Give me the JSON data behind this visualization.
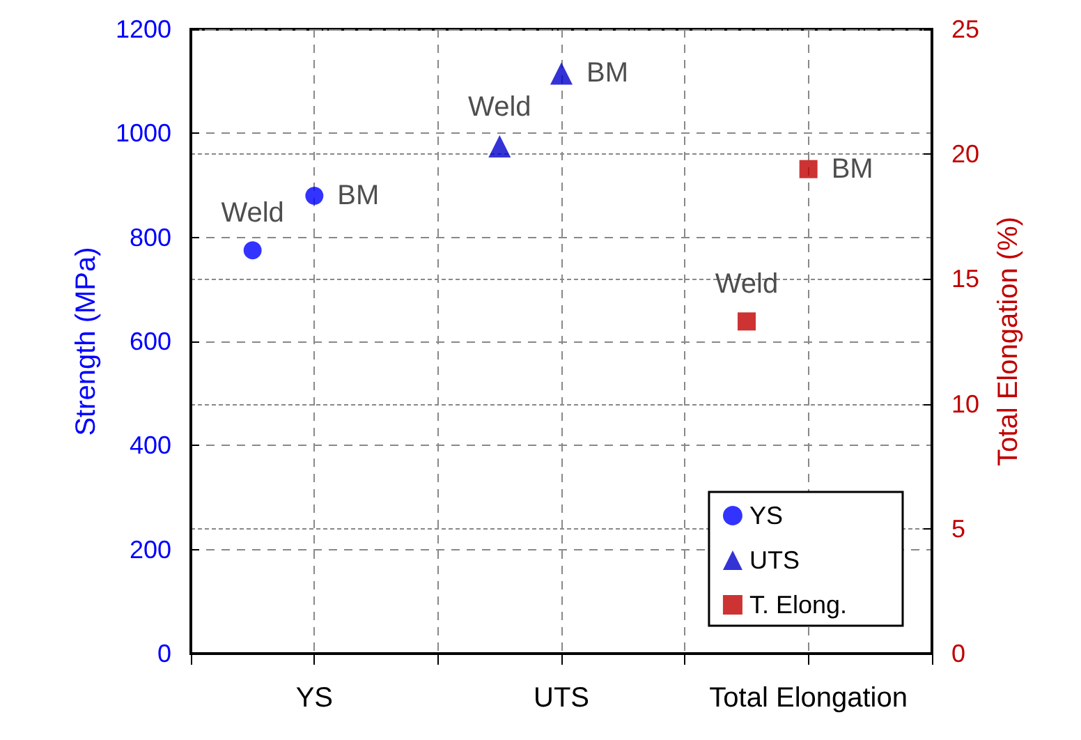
{
  "chart_data": {
    "type": "scatter",
    "categories": [
      "YS",
      "UTS",
      "Total Elongation"
    ],
    "ylabel": "Strength (MPa)",
    "y2label": "Total Elongation (%)",
    "ylim": [
      0,
      1200
    ],
    "yticks": [
      0,
      200,
      400,
      600,
      800,
      1000,
      1200
    ],
    "y2lim": [
      0,
      25
    ],
    "y2ticks": [
      0,
      5,
      10,
      15,
      20,
      25
    ],
    "grid": true,
    "legend": "bottom right",
    "series": [
      {
        "name": "YS",
        "color": "#0000ff",
        "marker": "circle",
        "x": [
          "YS",
          "YS"
        ],
        "values": [
          775,
          880
        ]
      },
      {
        "name": "UTS",
        "color": "#0000cc",
        "marker": "triangle",
        "x": [
          "UTS",
          "UTS"
        ],
        "values": [
          975,
          1115
        ]
      },
      {
        "name": "T. Elong.",
        "color": "#c00000",
        "marker": "square",
        "axis": "y2",
        "x": [
          "Total Elongation",
          "Total Elongation"
        ],
        "values": [
          13.3,
          19.4
        ]
      }
    ],
    "annotations": [
      "Weld",
      "BM",
      "Weld",
      "BM",
      "Weld",
      "BM"
    ]
  }
}
